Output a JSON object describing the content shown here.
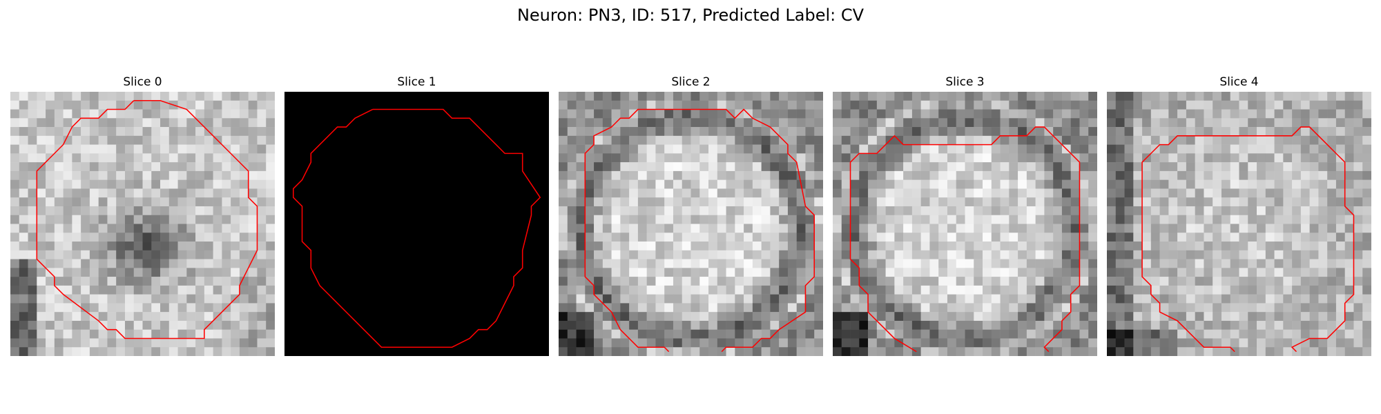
{
  "figure": {
    "title": "Neuron: PN3, ID: 517, Predicted Label: CV",
    "contour_color": "#ff0000",
    "colormap": "grayscale",
    "panels": [
      {
        "label": "Slice 0",
        "type": "textured",
        "pattern": "dark-center"
      },
      {
        "label": "Slice 1",
        "type": "solid-black"
      },
      {
        "label": "Slice 2",
        "type": "textured",
        "pattern": "bright-disc-dark-ring"
      },
      {
        "label": "Slice 3",
        "type": "textured",
        "pattern": "bright-disc-dark-ring"
      },
      {
        "label": "Slice 4",
        "type": "textured",
        "pattern": "bright-center"
      }
    ]
  }
}
